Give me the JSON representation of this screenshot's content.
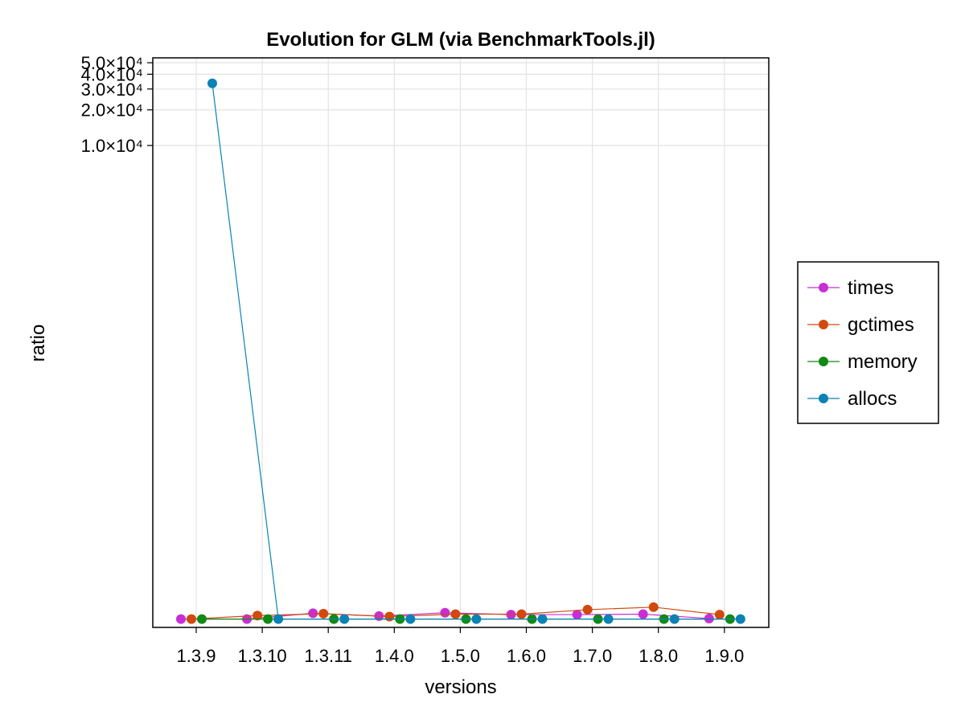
{
  "chart_data": {
    "type": "line",
    "title": "Evolution for GLM (via BenchmarkTools.jl)",
    "xlabel": "versions",
    "ylabel": "ratio",
    "categories": [
      "1.3.9",
      "1.3.10",
      "1.3.11",
      "1.4.0",
      "1.5.0",
      "1.6.0",
      "1.7.0",
      "1.8.0",
      "1.9.0"
    ],
    "y_scale": "log",
    "y_ticks": [
      {
        "value": 10000,
        "label": "1.0×10⁴"
      },
      {
        "value": 20000,
        "label": "2.0×10⁴"
      },
      {
        "value": 30000,
        "label": "3.0×10⁴"
      },
      {
        "value": 40000,
        "label": "4.0×10⁴"
      },
      {
        "value": 50000,
        "label": "5.0×10⁴"
      }
    ],
    "ylim": [
      0.85,
      55000
    ],
    "grid": true,
    "legend_position": "right",
    "series": [
      {
        "name": "times",
        "color": "#c82ed6",
        "values": [
          1.0,
          1.0,
          1.12,
          1.06,
          1.13,
          1.09,
          1.09,
          1.1,
          1.01
        ]
      },
      {
        "name": "gctimes",
        "color": "#d1490e",
        "values": [
          1.0,
          1.07,
          1.11,
          1.05,
          1.1,
          1.1,
          1.2,
          1.26,
          1.09
        ]
      },
      {
        "name": "memory",
        "color": "#0f8a13",
        "values": [
          1.0,
          1.0,
          1.0,
          1.0,
          1.0,
          1.0,
          1.0,
          1.0,
          1.0
        ]
      },
      {
        "name": "allocs",
        "color": "#0a82b4",
        "values": [
          33500,
          1.0,
          1.0,
          1.0,
          1.0,
          1.0,
          1.0,
          1.0,
          1.0
        ]
      }
    ]
  }
}
